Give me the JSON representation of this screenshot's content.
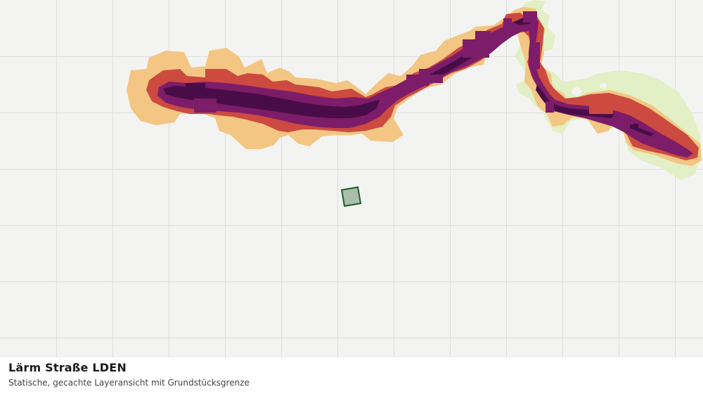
{
  "map": {
    "layer_name": "Lärm Straße LDEN",
    "description": "Statische, gecachte Layeransicht mit Grundstücksgrenze",
    "noise_colors": {
      "light_green": "#e3efc4",
      "orange_light": "#f3c683",
      "red": "#cc4a3f",
      "purple": "#7d1c68",
      "dark_purple": "#480d48"
    },
    "parcel_colors": {
      "fill": "#a9bfa9",
      "stroke": "#1f5a2a"
    },
    "grid_color": "#dedfdc",
    "background_color": "#f3f4f2"
  }
}
